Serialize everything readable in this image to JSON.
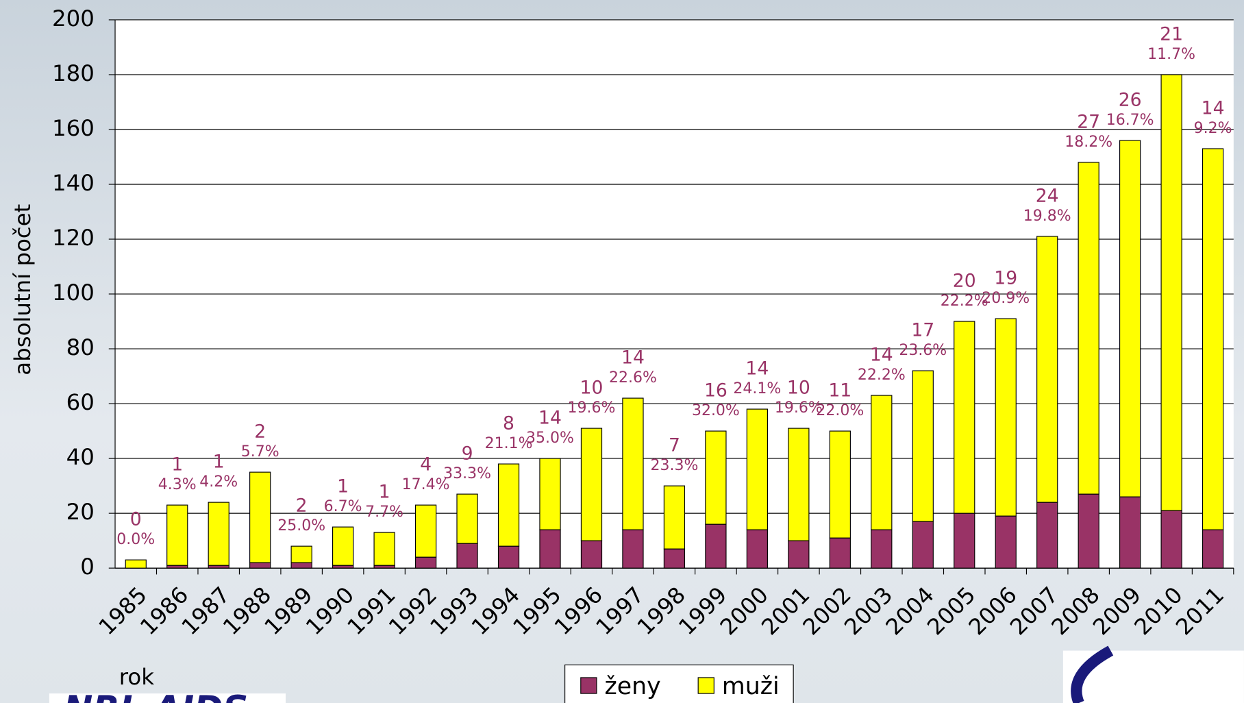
{
  "chart_data": {
    "type": "stacked-bar",
    "categories": [
      "1985",
      "1986",
      "1987",
      "1988",
      "1989",
      "1990",
      "1991",
      "1992",
      "1993",
      "1994",
      "1995",
      "1996",
      "1997",
      "1998",
      "1999",
      "2000",
      "2001",
      "2002",
      "2003",
      "2004",
      "2005",
      "2006",
      "2007",
      "2008",
      "2009",
      "2010",
      "2011"
    ],
    "series": [
      {
        "name": "ženy",
        "color": "#993366",
        "values": [
          0,
          1,
          1,
          2,
          2,
          1,
          1,
          4,
          9,
          8,
          14,
          10,
          14,
          7,
          16,
          14,
          10,
          11,
          14,
          17,
          20,
          19,
          24,
          27,
          26,
          21,
          14
        ]
      },
      {
        "name": "muži",
        "color": "#ffff00",
        "values": [
          3,
          22,
          23,
          33,
          6,
          14,
          12,
          19,
          18,
          30,
          26,
          41,
          48,
          23,
          34,
          44,
          41,
          39,
          49,
          55,
          70,
          72,
          97,
          121,
          130,
          159,
          139
        ]
      }
    ],
    "percent_labels": [
      "0.0%",
      "4.3%",
      "4.2%",
      "5.7%",
      "25.0%",
      "6.7%",
      "7.7%",
      "17.4%",
      "33.3%",
      "21.1%",
      "35.0%",
      "19.6%",
      "22.6%",
      "23.3%",
      "32.0%",
      "24.1%",
      "19.6%",
      "22.0%",
      "22.2%",
      "23.6%",
      "22.2%",
      "20.9%",
      "19.8%",
      "18.2%",
      "16.7%",
      "11.7%",
      "9.2%"
    ],
    "ylabel": "absolutní počet",
    "xlabel": "rok",
    "ylim": [
      0,
      200
    ],
    "yticks": [
      0,
      20,
      40,
      60,
      80,
      100,
      120,
      140,
      160,
      180,
      200
    ],
    "grid": true,
    "legend": "bottom",
    "logo": "NRL AIDS"
  }
}
